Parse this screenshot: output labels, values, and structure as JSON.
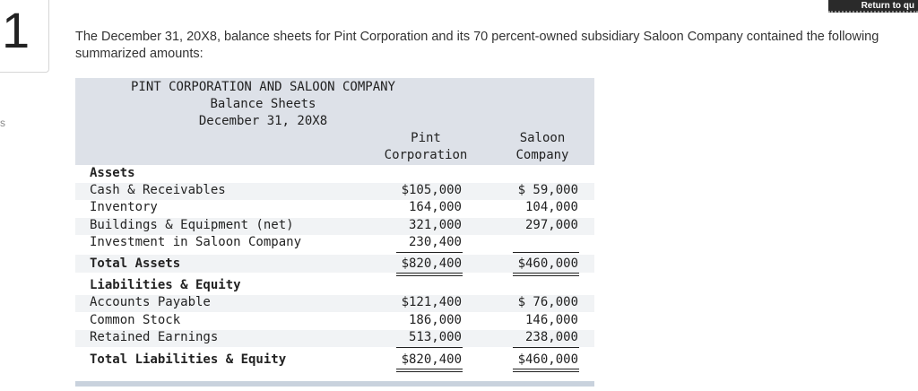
{
  "question": {
    "number": "1",
    "side_letter": "s",
    "return_label": "Return to qu"
  },
  "intro_text": "The December 31, 20X8, balance sheets for Pint Corporation and its 70 percent-owned subsidiary Saloon Company contained the following summarized amounts:",
  "sheet": {
    "title": "PINT CORPORATION AND SALOON COMPANY",
    "subtitle": "Balance Sheets",
    "date": "December 31, 20X8",
    "col1_head_a": "Pint",
    "col1_head_b": "Corporation",
    "col2_head_a": "Saloon",
    "col2_head_b": "Company",
    "assets_heading": "Assets",
    "rows_assets": [
      {
        "label": "Cash & Receivables",
        "pint": "$105,000",
        "saloon": "$ 59,000"
      },
      {
        "label": "Inventory",
        "pint": "164,000",
        "saloon": "104,000"
      },
      {
        "label": "Buildings & Equipment (net)",
        "pint": "321,000",
        "saloon": "297,000"
      },
      {
        "label": "Investment in Saloon Company",
        "pint": "230,400",
        "saloon": ""
      }
    ],
    "total_assets": {
      "label": "Total Assets",
      "pint": "$820,400",
      "saloon": "$460,000"
    },
    "liab_heading": "Liabilities & Equity",
    "rows_liab": [
      {
        "label": "Accounts Payable",
        "pint": "$121,400",
        "saloon": "$ 76,000"
      },
      {
        "label": "Common Stock",
        "pint": "186,000",
        "saloon": "146,000"
      },
      {
        "label": "Retained Earnings",
        "pint": "513,000",
        "saloon": "238,000"
      }
    ],
    "total_liab": {
      "label": "Total Liabilities & Equity",
      "pint": "$820,400",
      "saloon": "$460,000"
    }
  }
}
